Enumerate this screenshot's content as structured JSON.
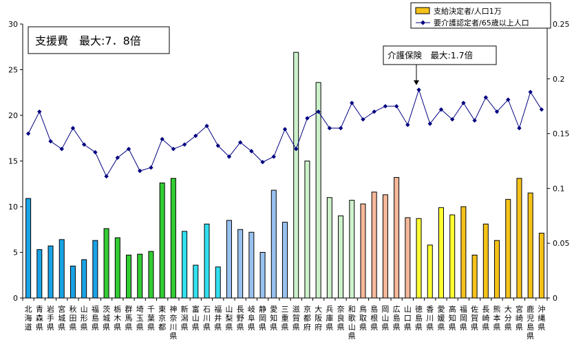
{
  "chart_data": {
    "type": "bar",
    "categories": [
      "北海道",
      "青森県",
      "岩手県",
      "宮城県",
      "秋田県",
      "山形県",
      "福島県",
      "茨城県",
      "栃木県",
      "群馬県",
      "埼玉県",
      "千葉県",
      "東京都",
      "神奈川県",
      "新潟県",
      "富山県",
      "石川県",
      "福井県",
      "山梨県",
      "長野県",
      "岐阜県",
      "静岡県",
      "愛知県",
      "三重県",
      "滋賀県",
      "京都府",
      "大阪府",
      "兵庫県",
      "奈良県",
      "和歌山県",
      "鳥取県",
      "島根県",
      "岡山県",
      "広島県",
      "山口県",
      "徳島県",
      "香川県",
      "愛媛県",
      "高知県",
      "福岡県",
      "佐賀県",
      "長崎県",
      "熊本県",
      "大分県",
      "宮崎県",
      "鹿児島県",
      "沖縄県"
    ],
    "category_labels": [
      [
        "北",
        "海",
        "道"
      ],
      [
        "青",
        "森",
        "県"
      ],
      [
        "岩",
        "手",
        "県"
      ],
      [
        "宮",
        "城",
        "県"
      ],
      [
        "秋",
        "田",
        "県"
      ],
      [
        "山",
        "形",
        "県"
      ],
      [
        "福",
        "島",
        "県"
      ],
      [
        "茨",
        "城",
        "県"
      ],
      [
        "栃",
        "木",
        "県"
      ],
      [
        "群",
        "馬",
        "県"
      ],
      [
        "埼",
        "玉",
        "県"
      ],
      [
        "千",
        "葉",
        "県"
      ],
      [
        "東",
        "京",
        "都"
      ],
      [
        "神",
        "奈",
        "川",
        "県"
      ],
      [
        "新",
        "潟",
        "県"
      ],
      [
        "富",
        "山",
        "県"
      ],
      [
        "石",
        "川",
        "県"
      ],
      [
        "福",
        "井",
        "県"
      ],
      [
        "山",
        "梨",
        "県"
      ],
      [
        "長",
        "野",
        "県"
      ],
      [
        "岐",
        "阜",
        "県"
      ],
      [
        "静",
        "岡",
        "県"
      ],
      [
        "愛",
        "知",
        "県"
      ],
      [
        "三",
        "重",
        "県"
      ],
      [
        "滋",
        "賀",
        "県"
      ],
      [
        "京",
        "都",
        "府"
      ],
      [
        "大",
        "阪",
        "府"
      ],
      [
        "兵",
        "庫",
        "県"
      ],
      [
        "奈",
        "良",
        "県"
      ],
      [
        "和",
        "歌",
        "山",
        "県"
      ],
      [
        "鳥",
        "取",
        "県"
      ],
      [
        "島",
        "根",
        "県"
      ],
      [
        "岡",
        "山",
        "県"
      ],
      [
        "広",
        "島",
        "県"
      ],
      [
        "山",
        "口",
        "県"
      ],
      [
        "徳",
        "島",
        "県"
      ],
      [
        "香",
        "川",
        "県"
      ],
      [
        "愛",
        "媛",
        "県"
      ],
      [
        "高",
        "知",
        "県"
      ],
      [
        "福",
        "岡",
        "県"
      ],
      [
        "佐",
        "賀",
        "県"
      ],
      [
        "長",
        "崎",
        "県"
      ],
      [
        "熊",
        "本",
        "県"
      ],
      [
        "大",
        "分",
        "県"
      ],
      [
        "宮",
        "崎",
        "県"
      ],
      [
        "鹿",
        "児",
        "島",
        "県"
      ],
      [
        "沖",
        "縄",
        "県"
      ]
    ],
    "series": [
      {
        "name": "支給決定者/人口1万",
        "axis": "left",
        "kind": "bar",
        "values": [
          10.9,
          5.3,
          5.7,
          6.4,
          3.5,
          4.2,
          6.3,
          7.6,
          6.6,
          4.7,
          4.8,
          5.1,
          12.6,
          13.1,
          7.3,
          3.6,
          8.1,
          3.4,
          8.5,
          7.5,
          7.2,
          5.0,
          11.8,
          8.3,
          26.9,
          15.0,
          23.6,
          11.0,
          9.0,
          10.7,
          10.3,
          11.6,
          11.3,
          13.2,
          8.8,
          8.7,
          5.8,
          9.9,
          9.1,
          10.0,
          4.7,
          8.1,
          6.3,
          10.8,
          13.1,
          11.5,
          7.1
        ]
      },
      {
        "name": "要介護認定者/65歳以上人口",
        "axis": "right",
        "kind": "line",
        "values": [
          0.15,
          0.17,
          0.143,
          0.136,
          0.155,
          0.14,
          0.133,
          0.111,
          0.128,
          0.136,
          0.116,
          0.119,
          0.145,
          0.136,
          0.14,
          0.148,
          0.157,
          0.139,
          0.129,
          0.142,
          0.134,
          0.124,
          0.129,
          0.154,
          0.136,
          0.164,
          0.17,
          0.155,
          0.155,
          0.178,
          0.163,
          0.17,
          0.175,
          0.175,
          0.158,
          0.19,
          0.159,
          0.172,
          0.163,
          0.178,
          0.162,
          0.183,
          0.17,
          0.181,
          0.155,
          0.188,
          0.172
        ]
      }
    ],
    "bar_colors": [
      "#1aa3e6",
      "#1aa3e6",
      "#1aa3e6",
      "#1aa3e6",
      "#1aa3e6",
      "#1aa3e6",
      "#1aa3e6",
      "#33cc33",
      "#33cc33",
      "#33cc33",
      "#33cc33",
      "#33cc33",
      "#33cc33",
      "#33cc33",
      "#33e0f0",
      "#33e0f0",
      "#33e0f0",
      "#33e0f0",
      "#99c2f0",
      "#99c2f0",
      "#99c2f0",
      "#99c2f0",
      "#99c2f0",
      "#99c2f0",
      "#ccf2cc",
      "#ccf2cc",
      "#ccf2cc",
      "#ccf2cc",
      "#ccf2cc",
      "#ccf2cc",
      "#f5b89a",
      "#f5b89a",
      "#f5b89a",
      "#f5b89a",
      "#f5b89a",
      "#ffff33",
      "#ffff33",
      "#ffff33",
      "#ffff33",
      "#f5c21a",
      "#f5c21a",
      "#f5c21a",
      "#f5c21a",
      "#f5c21a",
      "#f5c21a",
      "#f5c21a",
      "#f5c21a"
    ],
    "line_color": "#000080",
    "legend_bar_color": "#f5c21a",
    "yleft_lim": [
      0,
      30
    ],
    "yleft_ticks": [
      "0",
      "5",
      "10",
      "15",
      "20",
      "25",
      "30"
    ],
    "yright_lim": [
      0,
      0.25
    ],
    "yright_ticks": [
      "0",
      "0.05",
      "0.1",
      "0.15",
      "0.2",
      "0.25"
    ],
    "grid": false,
    "legend_position": "top-right",
    "annotations": {
      "box_title": "支援費　最大:7．8倍",
      "callout": "介護保険　最大:1.7倍"
    }
  }
}
